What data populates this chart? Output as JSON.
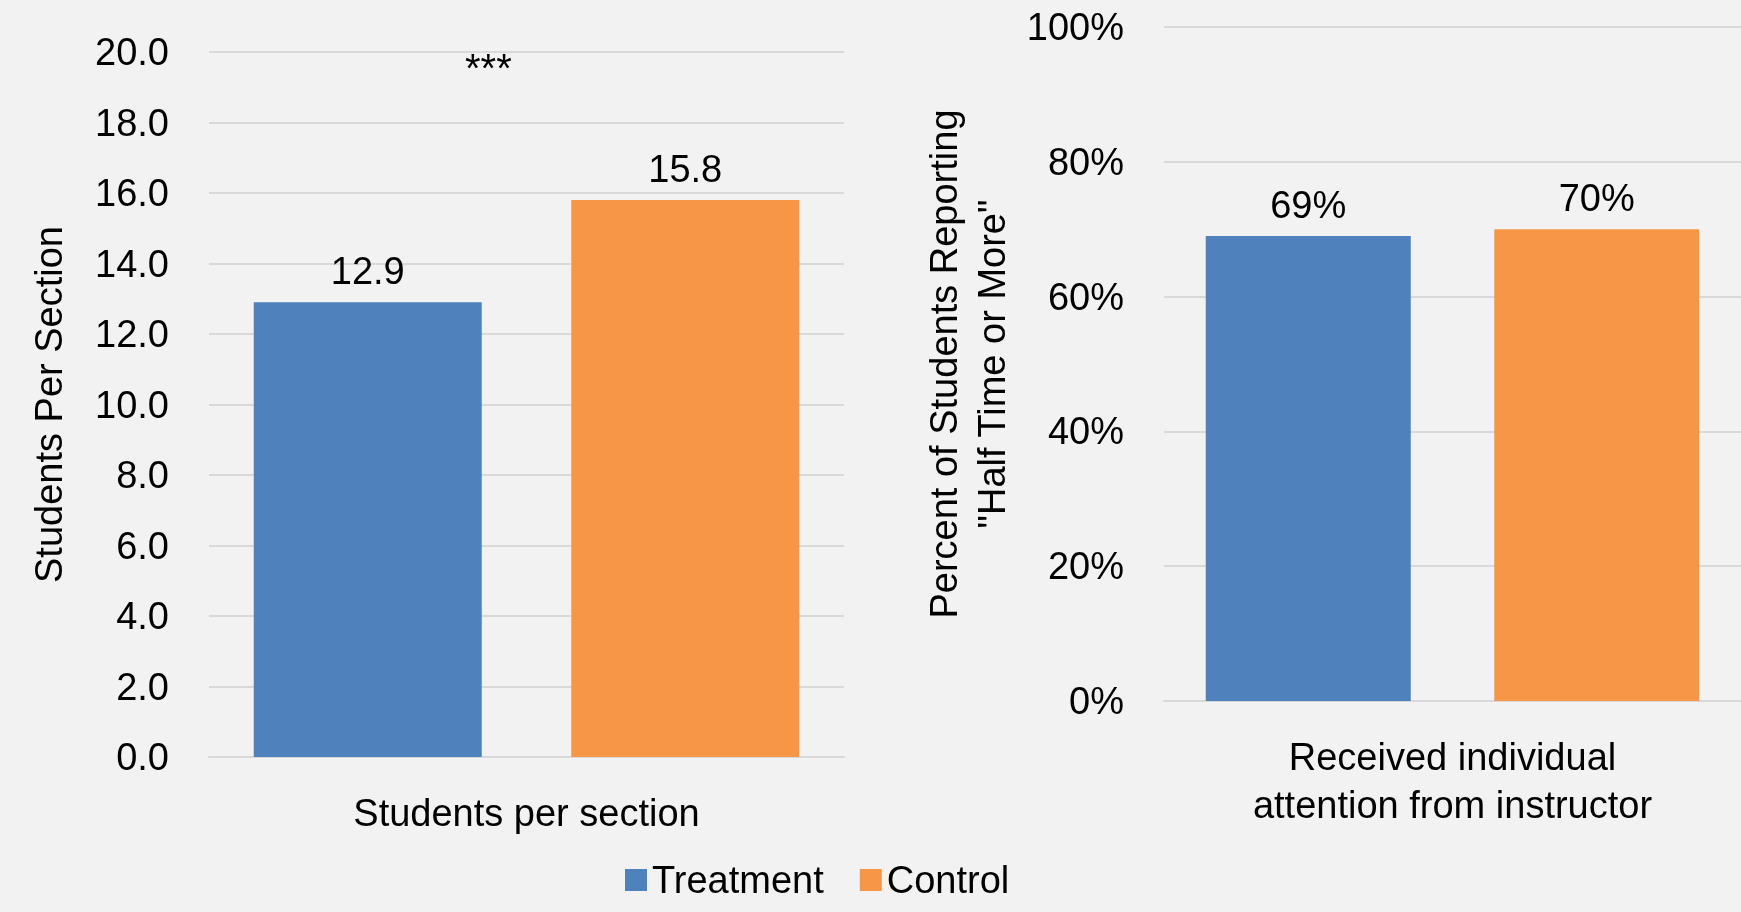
{
  "chart_data": [
    {
      "type": "bar",
      "ylabel": "Students Per Section",
      "xlabel": "Students per section",
      "categories": [
        null,
        null
      ],
      "stacked": true,
      "series": [
        {
          "name": "Treatment",
          "color": "#4f81bd",
          "values": [
            12.9,
            null
          ]
        },
        {
          "name": "Control",
          "color": "#f79646",
          "values": [
            null,
            15.8
          ]
        }
      ],
      "ylim": [
        0,
        20
      ],
      "yticks": [
        {
          "value": 0,
          "label": "0.0"
        },
        {
          "value": 2,
          "label": "2.0"
        },
        {
          "value": 4,
          "label": "4.0"
        },
        {
          "value": 6,
          "label": "6.0"
        },
        {
          "value": 8,
          "label": "8.0"
        },
        {
          "value": 10,
          "label": "10.0"
        },
        {
          "value": 12,
          "label": "12.0"
        },
        {
          "value": 14,
          "label": "14.0"
        },
        {
          "value": 16,
          "label": "16.0"
        },
        {
          "value": 18,
          "label": "18.0"
        },
        {
          "value": 20,
          "label": "20.0"
        }
      ],
      "data_labels": true,
      "grid": "y",
      "legend": "bottom",
      "annotations": [
        "***"
      ]
    },
    {
      "type": "bar",
      "ylabel": "Percent of Students Reporting \"Half Time or More\"",
      "xlabel": "Received individual attention from instructor",
      "categories": [
        null,
        null
      ],
      "stacked": true,
      "series": [
        {
          "color": "#4f81bd",
          "values": [
            69,
            null
          ],
          "value_labels": [
            "69%",
            null
          ]
        },
        {
          "color": "#f79646",
          "values": [
            null,
            70
          ],
          "value_labels": [
            null,
            "70%"
          ]
        }
      ],
      "ylim": [
        0,
        100
      ],
      "yticks": [
        {
          "value": 0,
          "label": "0%"
        },
        {
          "value": 20,
          "label": "20%"
        },
        {
          "value": 40,
          "label": "40%"
        },
        {
          "value": 60,
          "label": "60%"
        },
        {
          "value": 80,
          "label": "80%"
        },
        {
          "value": 100,
          "label": "100%"
        }
      ],
      "grid": "y",
      "legend": false
    }
  ]
}
